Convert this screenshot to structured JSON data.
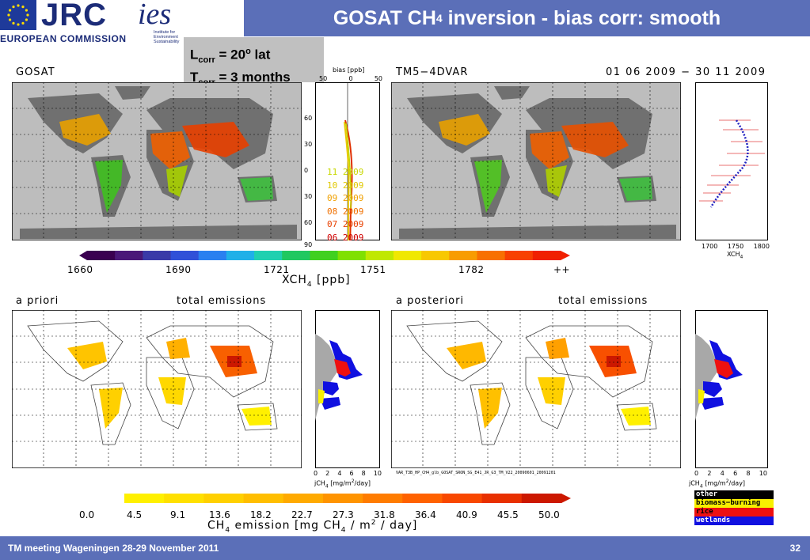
{
  "header": {
    "jrc": "JRC",
    "ec": "EUROPEAN COMMISSION",
    "ies": "ies",
    "ies_sub1": "Institute for",
    "ies_sub2": "Environment",
    "ies_sub3": "Sustainability",
    "title_main": "GOSAT CH",
    "title_sub": "4",
    "title_rest": " inversion - bias corr: smooth"
  },
  "info_box": {
    "l_main": "L",
    "l_sub": "corr",
    "l_rest": " = 20",
    "l_sup": "o",
    "l_unit": " lat",
    "t_main": "T",
    "t_sub": "corr",
    "t_rest": " = 3 months"
  },
  "top_panels": {
    "left_label": "GOSAT",
    "right_label": "TM5−4DVAR",
    "date_range": "01 06 2009 − 30 11 2009",
    "bias_label": "bias [ppb]",
    "bias_ticks": [
      "50",
      "0",
      "50"
    ],
    "lat_ticks": [
      "60",
      "30",
      "0",
      "30",
      "60",
      "90"
    ],
    "months": [
      "11 2009",
      "10 2009",
      "09 2009",
      "08 2009",
      "07 2009",
      "06 2009"
    ],
    "month_colors": [
      "#c8d800",
      "#e0c800",
      "#f0a000",
      "#f07000",
      "#e84000",
      "#d00000"
    ],
    "xch4_ticks": [
      "1700",
      "1750",
      "1800"
    ],
    "xch4_axis": "XCH",
    "xch4_sub": "4"
  },
  "colorbar_top": {
    "ticks": [
      "1660",
      "1690",
      "1721",
      "1751",
      "1782",
      "++"
    ],
    "title": "XCH",
    "title_sub": "4",
    "title_unit": " [ppb]",
    "colors": [
      "#3a0050",
      "#4a1878",
      "#3a3aa8",
      "#3050d8",
      "#2a80f0",
      "#20b0e8",
      "#20d0b0",
      "#20c860",
      "#40d020",
      "#80e000",
      "#c0e800",
      "#f0e800",
      "#f8c800",
      "#f89c00",
      "#f87000",
      "#f84000",
      "#f02000"
    ]
  },
  "bottom_panels": {
    "left_title": "a priori",
    "left_sub": "total emissions",
    "right_title": "a posteriori",
    "right_sub": "total emissions",
    "jch4_ticks": [
      "0",
      "2",
      "4",
      "6",
      "8",
      "10"
    ],
    "jch4_label": "jCH",
    "jch4_sub": "4",
    "jch4_unit": " [mg/m",
    "jch4_sup": "2",
    "jch4_end": "/day]",
    "caption": "VAR_T3B_HP_CH4_glb_GOSAT_SRON_SG_E41_JR_G3_TM_V22_20090601_20091201"
  },
  "colorbar_bottom": {
    "ticks": [
      "0.0",
      "4.5",
      "9.1",
      "13.6",
      "18.2",
      "22.7",
      "27.3",
      "31.8",
      "36.4",
      "40.9",
      "45.5",
      "50.0"
    ],
    "title": "CH",
    "title_sub": "4",
    "title_mid": " emission [mg CH",
    "title_sub2": "4",
    "title_mid2": " / m",
    "title_sup": "2",
    "title_end": " / day]",
    "colors": [
      "#fff000",
      "#ffe000",
      "#ffd000",
      "#ffbe00",
      "#ffaa00",
      "#ff9400",
      "#ff7c00",
      "#ff6200",
      "#f84800",
      "#e83000",
      "#cc1800"
    ]
  },
  "legend": [
    {
      "label": "other",
      "color": "#a0a0a0"
    },
    {
      "label": "biomass−burning",
      "color": "#f8f000"
    },
    {
      "label": "rice",
      "color": "#ee1010"
    },
    {
      "label": "wetlands",
      "color": "#1010e0"
    }
  ],
  "footer": {
    "left": "TM meeting Wageningen 28-29 November 2011",
    "right": "32"
  }
}
